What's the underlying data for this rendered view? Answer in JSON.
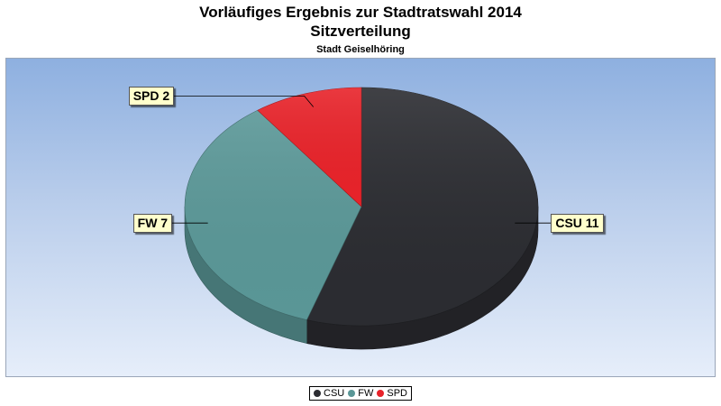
{
  "title": "Vorläufiges Ergebnis zur Stadtratswahl 2014",
  "subtitle": "Sitzverteilung",
  "subsubtitle": "Stadt Geiselhöring",
  "chart_data": {
    "type": "pie",
    "style": "3d",
    "legend": "bottom",
    "slices": [
      {
        "name": "CSU",
        "value": 11,
        "label": "CSU 11",
        "color": "#2b2c31"
      },
      {
        "name": "FW",
        "value": 7,
        "label": "FW 7",
        "color": "#5a9797"
      },
      {
        "name": "SPD",
        "value": 2,
        "label": "SPD 2",
        "color": "#e8232a"
      }
    ]
  }
}
